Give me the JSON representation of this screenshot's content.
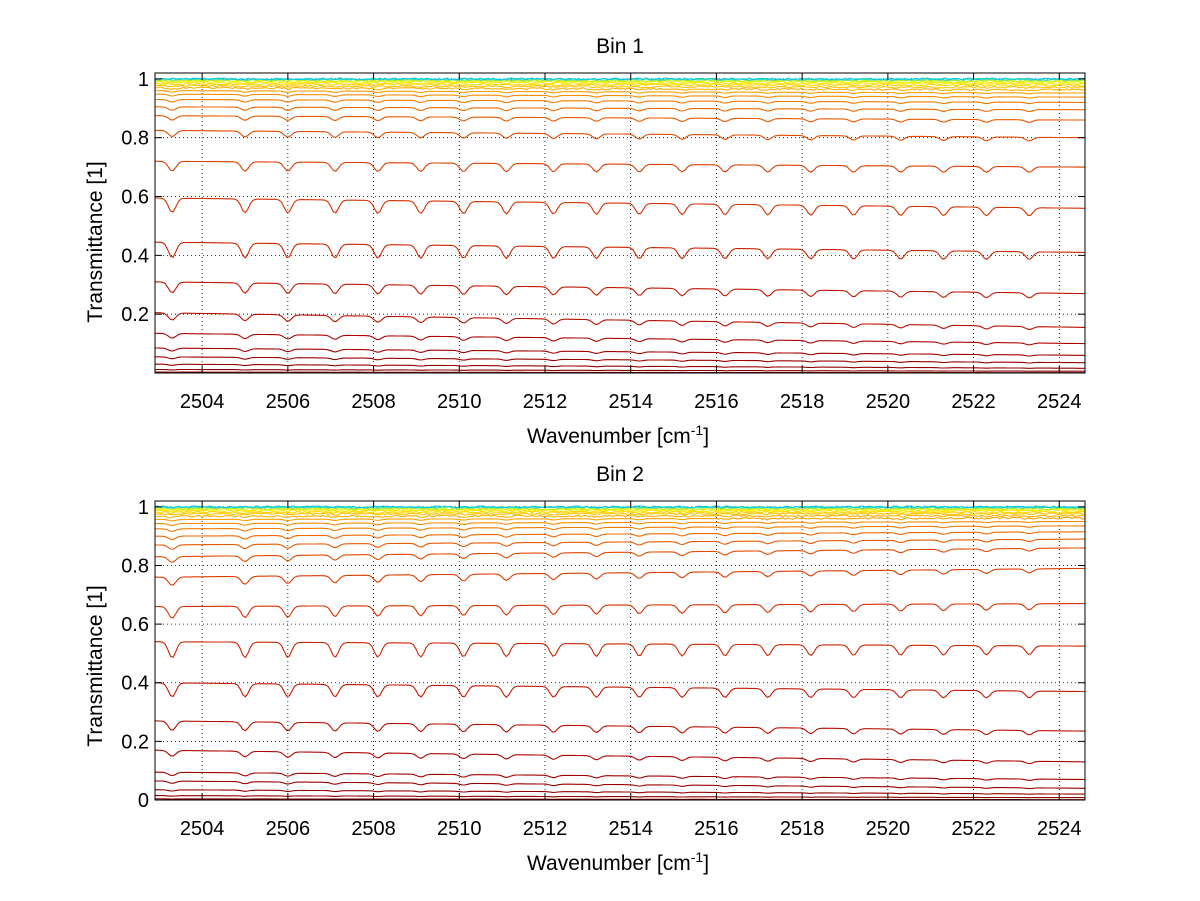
{
  "chart_data": [
    {
      "type": "line",
      "title": "Bin 1",
      "xlabel": "Wavenumber [cm",
      "xlabel_superscript": "-1",
      "xlabel_suffix": "]",
      "ylabel": "Transmittance [1]",
      "xlim": [
        2502.9,
        2524.6
      ],
      "ylim": [
        0,
        1.02
      ],
      "xticks": [
        2504,
        2506,
        2508,
        2510,
        2512,
        2514,
        2516,
        2518,
        2520,
        2522,
        2524
      ],
      "xtick_labels": [
        "2504",
        "2506",
        "2508",
        "2510",
        "2512",
        "2514",
        "2516",
        "2518",
        "2520",
        "2522",
        "2524"
      ],
      "yticks": [
        0.2,
        0.4,
        0.6,
        0.8,
        1
      ],
      "ytick_labels": [
        "0.2",
        "0.4",
        "0.6",
        "0.8",
        "1"
      ],
      "grid": true,
      "legend": "none",
      "series_colormap": "jet (dark red to cyan)",
      "series": [
        {
          "start": 0.0,
          "end": 0.0,
          "color": "#7f0000"
        },
        {
          "start": 0.003,
          "end": 0.001,
          "color": "#850000"
        },
        {
          "start": 0.012,
          "end": 0.006,
          "color": "#8c0000"
        },
        {
          "start": 0.03,
          "end": 0.016,
          "color": "#930000"
        },
        {
          "start": 0.055,
          "end": 0.035,
          "color": "#9a0000"
        },
        {
          "start": 0.085,
          "end": 0.06,
          "color": "#a30000"
        },
        {
          "start": 0.135,
          "end": 0.1,
          "color": "#ad0500"
        },
        {
          "start": 0.205,
          "end": 0.155,
          "color": "#b81000"
        },
        {
          "start": 0.31,
          "end": 0.27,
          "color": "#c21800"
        },
        {
          "start": 0.445,
          "end": 0.41,
          "color": "#cc2400"
        },
        {
          "start": 0.595,
          "end": 0.56,
          "color": "#d53000"
        },
        {
          "start": 0.72,
          "end": 0.7,
          "color": "#dd3c00"
        },
        {
          "start": 0.825,
          "end": 0.8,
          "color": "#e44a00"
        },
        {
          "start": 0.875,
          "end": 0.86,
          "color": "#ea5800"
        },
        {
          "start": 0.905,
          "end": 0.895,
          "color": "#ef6800"
        },
        {
          "start": 0.93,
          "end": 0.92,
          "color": "#f37a00"
        },
        {
          "start": 0.948,
          "end": 0.938,
          "color": "#f68c00"
        },
        {
          "start": 0.96,
          "end": 0.952,
          "color": "#f99e00"
        },
        {
          "start": 0.97,
          "end": 0.963,
          "color": "#fbb000"
        },
        {
          "start": 0.977,
          "end": 0.971,
          "color": "#fdc200"
        },
        {
          "start": 0.983,
          "end": 0.978,
          "color": "#fed400"
        },
        {
          "start": 0.988,
          "end": 0.984,
          "color": "#ffe400"
        },
        {
          "start": 0.992,
          "end": 0.989,
          "color": "#f0f000"
        },
        {
          "start": 0.995,
          "end": 0.993,
          "color": "#c8f020"
        },
        {
          "start": 0.997,
          "end": 0.996,
          "color": "#90e860"
        },
        {
          "start": 0.999,
          "end": 0.998,
          "color": "#40d8b0"
        },
        {
          "start": 1.0,
          "end": 1.0,
          "color": "#00c8e8"
        }
      ]
    },
    {
      "type": "line",
      "title": "Bin 2",
      "xlabel": "Wavenumber [cm",
      "xlabel_superscript": "-1",
      "xlabel_suffix": "]",
      "ylabel": "Transmittance [1]",
      "xlim": [
        2502.9,
        2524.6
      ],
      "ylim": [
        0,
        1.02
      ],
      "xticks": [
        2504,
        2506,
        2508,
        2510,
        2512,
        2514,
        2516,
        2518,
        2520,
        2522,
        2524
      ],
      "xtick_labels": [
        "2504",
        "2506",
        "2508",
        "2510",
        "2512",
        "2514",
        "2516",
        "2518",
        "2520",
        "2522",
        "2524"
      ],
      "yticks": [
        0,
        0.2,
        0.4,
        0.6,
        0.8,
        1
      ],
      "ytick_labels": [
        "0",
        "0.2",
        "0.4",
        "0.6",
        "0.8",
        "1"
      ],
      "grid": true,
      "legend": "none",
      "series_colormap": "jet (dark red to cyan)",
      "series": [
        {
          "start": 0.0,
          "end": 0.0,
          "color": "#7f0000"
        },
        {
          "start": 0.004,
          "end": 0.001,
          "color": "#850000"
        },
        {
          "start": 0.015,
          "end": 0.008,
          "color": "#8c0000"
        },
        {
          "start": 0.035,
          "end": 0.02,
          "color": "#930000"
        },
        {
          "start": 0.065,
          "end": 0.04,
          "color": "#9a0000"
        },
        {
          "start": 0.095,
          "end": 0.07,
          "color": "#a30000"
        },
        {
          "start": 0.17,
          "end": 0.13,
          "color": "#ad0500"
        },
        {
          "start": 0.27,
          "end": 0.235,
          "color": "#b81000"
        },
        {
          "start": 0.4,
          "end": 0.37,
          "color": "#c21800"
        },
        {
          "start": 0.54,
          "end": 0.525,
          "color": "#cc2400"
        },
        {
          "start": 0.66,
          "end": 0.67,
          "color": "#d53000"
        },
        {
          "start": 0.76,
          "end": 0.79,
          "color": "#dd3c00"
        },
        {
          "start": 0.83,
          "end": 0.86,
          "color": "#e44a00"
        },
        {
          "start": 0.87,
          "end": 0.89,
          "color": "#ea5800"
        },
        {
          "start": 0.9,
          "end": 0.915,
          "color": "#ef6800"
        },
        {
          "start": 0.925,
          "end": 0.935,
          "color": "#f37a00"
        },
        {
          "start": 0.943,
          "end": 0.95,
          "color": "#f68c00"
        },
        {
          "start": 0.957,
          "end": 0.962,
          "color": "#f99e00"
        },
        {
          "start": 0.968,
          "end": 0.97,
          "color": "#fbb000"
        },
        {
          "start": 0.976,
          "end": 0.977,
          "color": "#fdc200"
        },
        {
          "start": 0.982,
          "end": 0.982,
          "color": "#fed400"
        },
        {
          "start": 0.987,
          "end": 0.986,
          "color": "#ffe400"
        },
        {
          "start": 0.991,
          "end": 0.99,
          "color": "#f0f000"
        },
        {
          "start": 0.994,
          "end": 0.993,
          "color": "#c8f020"
        },
        {
          "start": 0.997,
          "end": 0.996,
          "color": "#90e860"
        },
        {
          "start": 0.999,
          "end": 0.998,
          "color": "#40d8b0"
        },
        {
          "start": 1.0,
          "end": 1.0,
          "color": "#00c8e8"
        }
      ]
    }
  ]
}
